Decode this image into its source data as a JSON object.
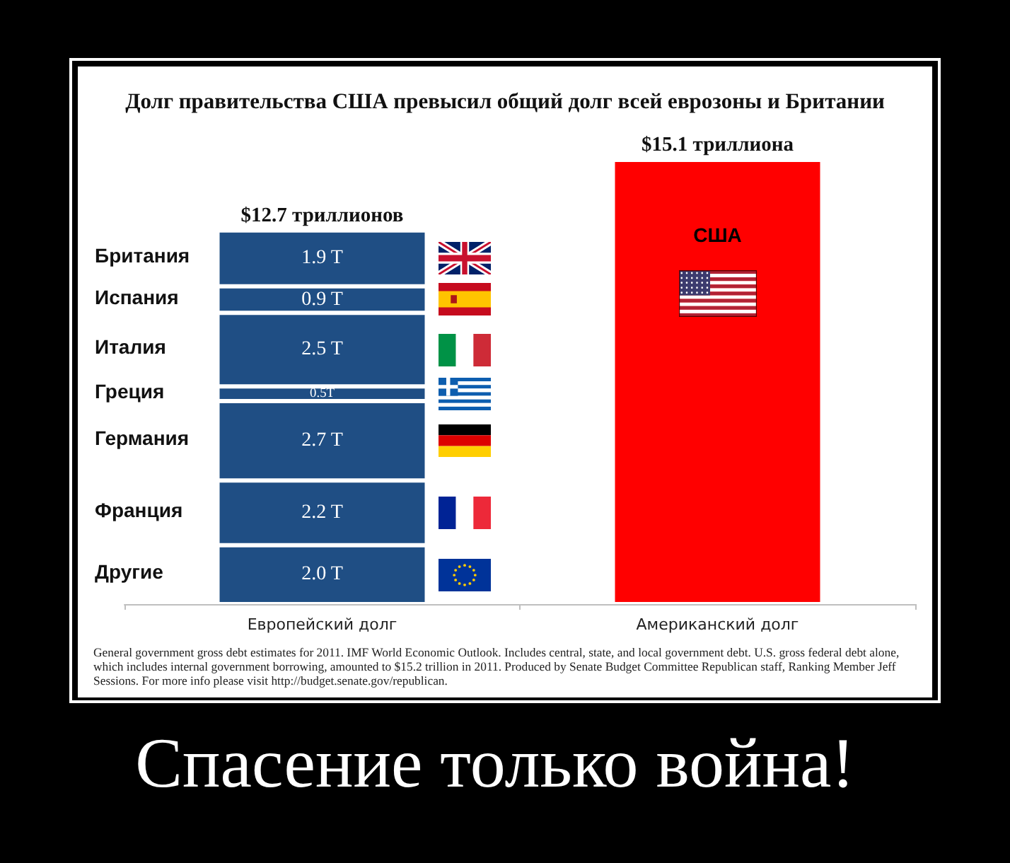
{
  "chart_data": {
    "type": "bar",
    "title": "Долг правительства США превысил общий долг всей еврозоны и Британии",
    "categories": [
      "Европейский долг",
      "Американский долг"
    ],
    "stacked": true,
    "series": [
      {
        "name": "Другие",
        "color": "#1f4e84",
        "values": [
          2.0,
          null
        ],
        "value_labels": [
          "2.0 T",
          null
        ]
      },
      {
        "name": "Франция",
        "color": "#1f4e84",
        "values": [
          2.2,
          null
        ],
        "value_labels": [
          "2.2 T",
          null
        ]
      },
      {
        "name": "Германия",
        "color": "#1f4e84",
        "values": [
          2.7,
          null
        ],
        "value_labels": [
          "2.7 T",
          null
        ]
      },
      {
        "name": "Греция",
        "color": "#1f4e84",
        "values": [
          0.5,
          null
        ],
        "value_labels": [
          "0.5T",
          null
        ]
      },
      {
        "name": "Италия",
        "color": "#1f4e84",
        "values": [
          2.5,
          null
        ],
        "value_labels": [
          "2.5 T",
          null
        ]
      },
      {
        "name": "Испания",
        "color": "#1f4e84",
        "values": [
          0.9,
          null
        ],
        "value_labels": [
          "0.9 T",
          null
        ]
      },
      {
        "name": "Британия",
        "color": "#1f4e84",
        "values": [
          1.9,
          null
        ],
        "value_labels": [
          "1.9 T",
          null
        ]
      },
      {
        "name": "США",
        "color": "#ff0000",
        "values": [
          null,
          15.1
        ]
      }
    ],
    "totals": [
      "$12.7 триллионов",
      "$15.1 триллиона"
    ],
    "ylim": [
      0,
      15.1
    ],
    "tick_labels": "x",
    "annotations": [
      "General government gross debt estimates for 2011. IMF World Economic Outlook. Includes central, state, and local government debt. U.S. gross federal debt alone, which includes internal government borrowing, amounted to $15.2 trillion in 2011. Produced by Senate Budget Committee Republican staff, Ranking Member Jeff Sessions. For more info please visit http://budget.senate.gov/republican.",
      "Спасение только война!"
    ]
  }
}
